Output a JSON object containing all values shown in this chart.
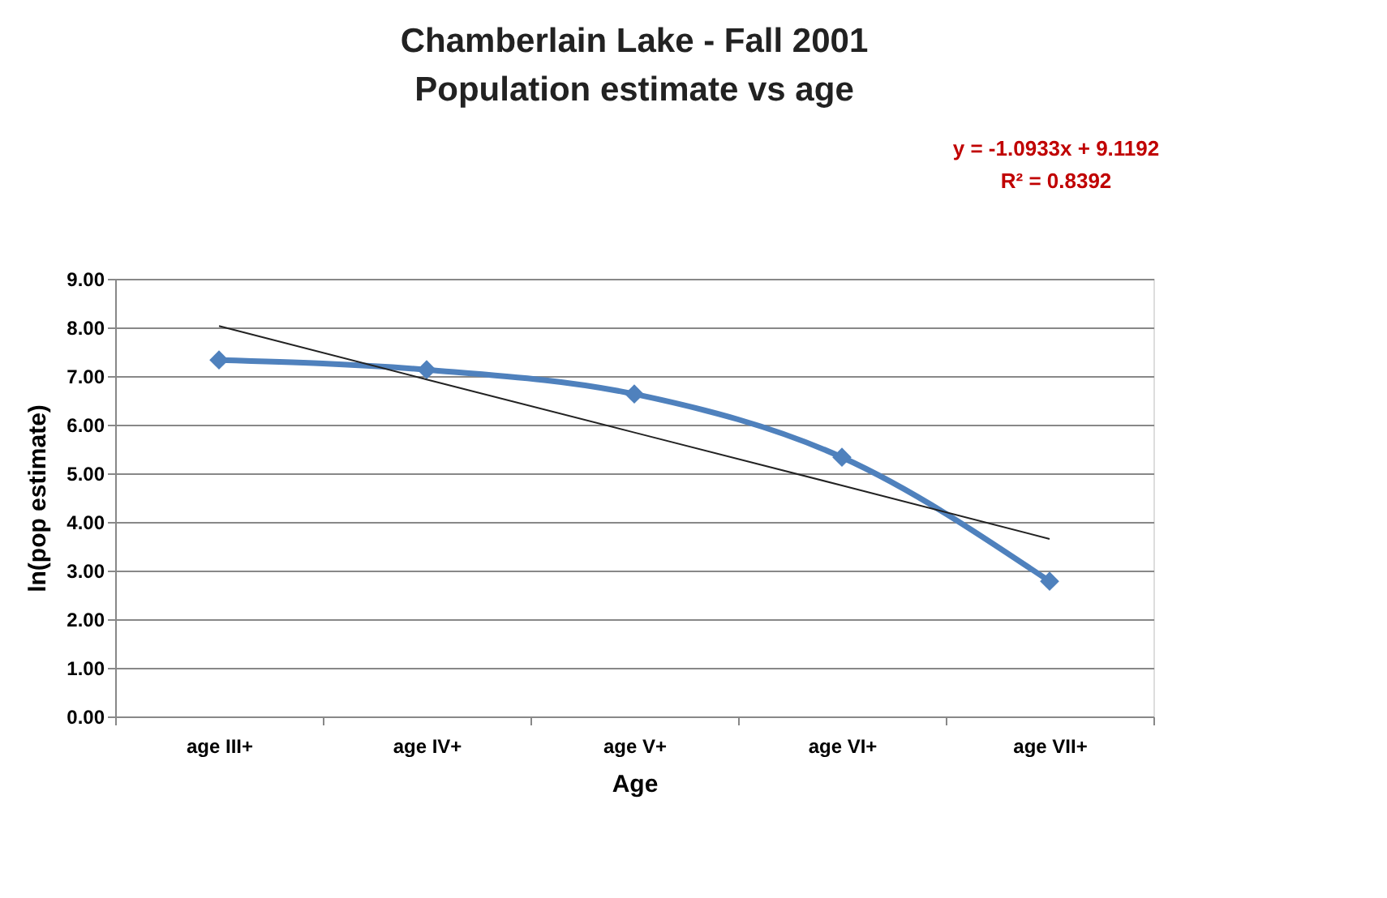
{
  "chart_data": {
    "type": "line",
    "title": [
      "Chamberlain Lake - Fall 2001",
      "Population estimate vs age"
    ],
    "xlabel": "Age",
    "ylabel": "ln(pop estimate)",
    "categories": [
      "age III+",
      "age IV+",
      "age V+",
      "age VI+",
      "age VII+"
    ],
    "series": [
      {
        "color": "#4f81bd",
        "values": [
          7.33,
          7.13,
          6.63,
          5.33,
          2.78
        ],
        "marker": "diamond"
      },
      {
        "type": "line",
        "color": "#222222",
        "values": [
          8.03,
          6.93,
          5.84,
          4.75,
          3.65
        ],
        "marker": "none"
      }
    ],
    "ylim": [
      0,
      9
    ],
    "yticks": [
      {
        "value": 0,
        "label": "0.00"
      },
      {
        "value": 1,
        "label": "1.00"
      },
      {
        "value": 2,
        "label": "2.00"
      },
      {
        "value": 3,
        "label": "3.00"
      },
      {
        "value": 4,
        "label": "4.00"
      },
      {
        "value": 5,
        "label": "5.00"
      },
      {
        "value": 6,
        "label": "6.00"
      },
      {
        "value": 7,
        "label": "7.00"
      },
      {
        "value": 8,
        "label": "8.00"
      },
      {
        "value": 9,
        "label": "9.00"
      }
    ],
    "grid": "y",
    "annotations": [
      "y = -1.0933x + 9.1192",
      "R² = 0.8392"
    ]
  }
}
